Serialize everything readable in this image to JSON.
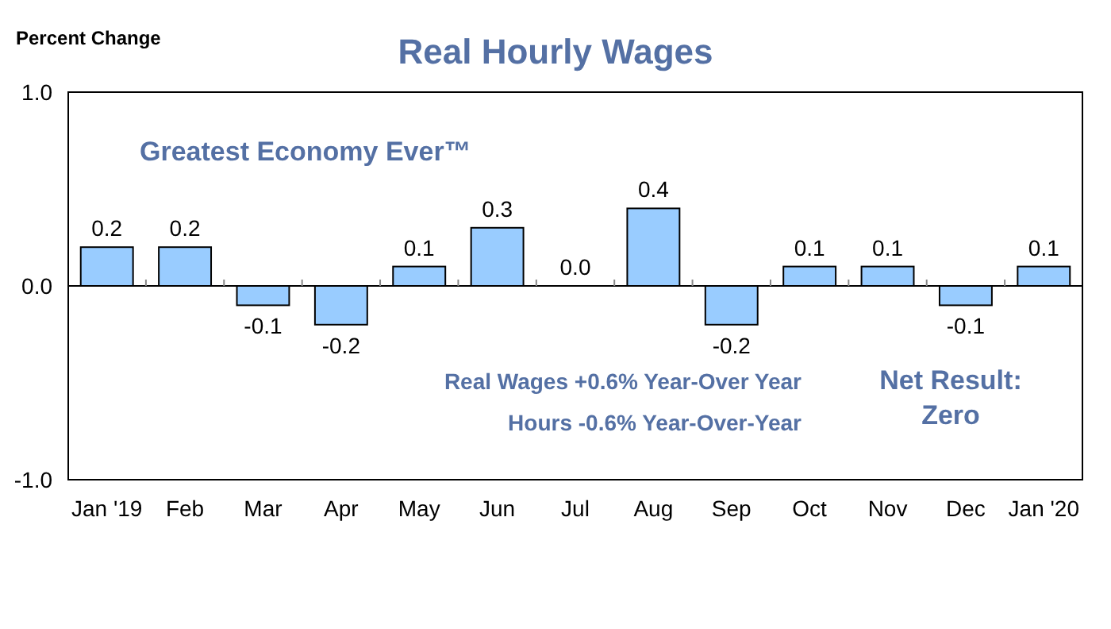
{
  "chart_data": {
    "type": "bar",
    "title": "Real Hourly Wages",
    "ylabel": "Percent Change",
    "categories": [
      "Jan '19",
      "Feb",
      "Mar",
      "Apr",
      "May",
      "Jun",
      "Jul",
      "Aug",
      "Sep",
      "Oct",
      "Nov",
      "Dec",
      "Jan '20"
    ],
    "values": [
      0.2,
      0.2,
      -0.1,
      -0.2,
      0.1,
      0.3,
      0.0,
      0.4,
      -0.2,
      0.1,
      0.1,
      -0.1,
      0.1
    ],
    "color": "#99ccff",
    "ylim": [
      -1,
      1
    ],
    "yticks": [
      {
        "value": -1,
        "label": "-1.0"
      },
      {
        "value": 0,
        "label": "0.0"
      },
      {
        "value": 1,
        "label": "1.0"
      }
    ],
    "value_labels": [
      "0.2",
      "0.2",
      "-0.1",
      "-0.2",
      "0.1",
      "0.3",
      "0.0",
      "0.4",
      "-0.2",
      "0.1",
      "0.1",
      "-0.1",
      "0.1"
    ],
    "annotations": [
      "Greatest Economy Ever™",
      "Real Wages +0.6% Year-Over Year",
      "Hours -0.6% Year-Over-Year",
      "Net Result:\nZero"
    ]
  }
}
